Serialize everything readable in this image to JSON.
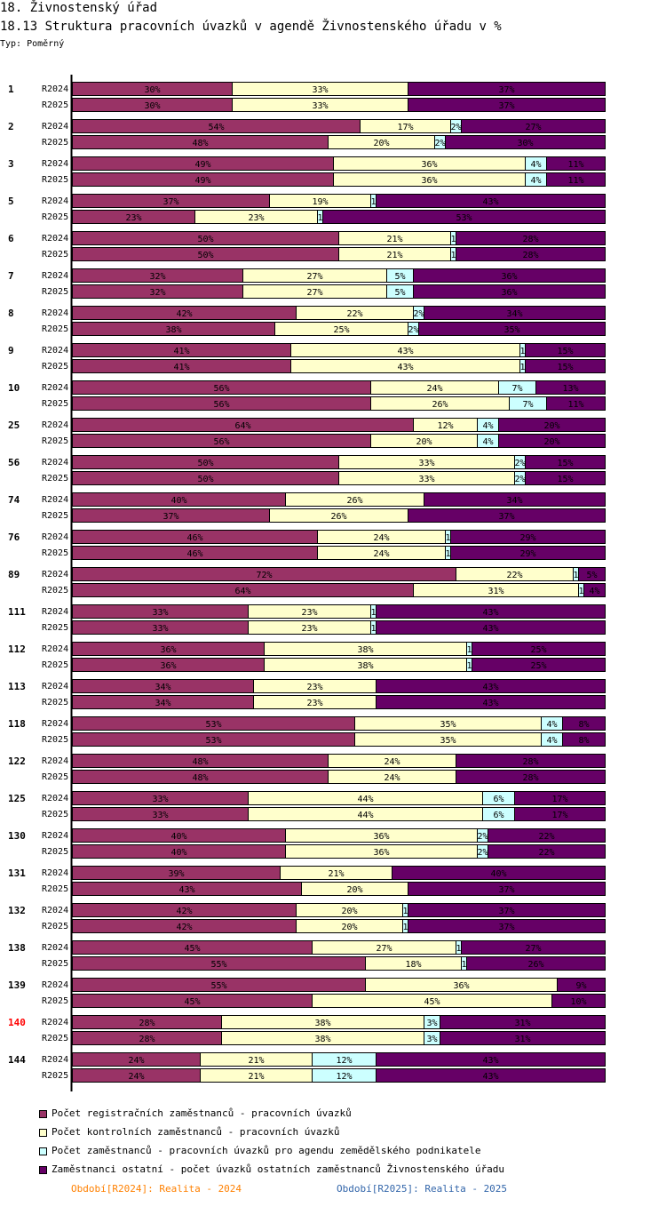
{
  "header": {
    "title": "18. Živnostenský úřad",
    "subtitle": "18.13 Struktura pracovních úvazků v agendě Živnostenského úřadu v %",
    "type_label": "Typ: Poměrný"
  },
  "colors": {
    "registration": "#993366",
    "control": "#ffffcc",
    "agriculture": "#ccffff",
    "other": "#660066",
    "highlight_group": "#ff0000",
    "period1": "#ff8000",
    "period2": "#3366aa"
  },
  "chart_data": {
    "type": "bar",
    "orientation": "horizontal",
    "stacked": true,
    "normalized": true,
    "unit": "%",
    "series": [
      {
        "name": "Počet registračních zaměstnanců - pracovních úvazků"
      },
      {
        "name": "Počet kontrolních zaměstnanců - pracovních úvazků"
      },
      {
        "name": "Počet zaměstnanců - pracovních úvazků pro agendu zemědělského podnikatele"
      },
      {
        "name": "Zaměstnanci ostatní - počet úvazků ostatních zaměstnanců Živnostenského úřadu"
      }
    ],
    "groups": [
      {
        "label": "1",
        "highlight": false,
        "rows": [
          {
            "period": "R2024",
            "values": [
              30,
              33,
              0,
              37
            ],
            "labels": [
              "30%",
              "33%",
              "",
              "37%"
            ]
          },
          {
            "period": "R2025",
            "values": [
              30,
              33,
              0,
              37
            ],
            "labels": [
              "30%",
              "33%",
              "",
              "37%"
            ]
          }
        ]
      },
      {
        "label": "2",
        "highlight": false,
        "rows": [
          {
            "period": "R2024",
            "values": [
              54,
              17,
              2,
              27
            ],
            "labels": [
              "54%",
              "17%",
              "2%",
              "27%"
            ]
          },
          {
            "period": "R2025",
            "values": [
              48,
              20,
              2,
              30
            ],
            "labels": [
              "48%",
              "20%",
              "2%",
              "30%"
            ]
          }
        ]
      },
      {
        "label": "3",
        "highlight": false,
        "rows": [
          {
            "period": "R2024",
            "values": [
              49,
              36,
              4,
              11
            ],
            "labels": [
              "49%",
              "36%",
              "4%",
              "11%"
            ]
          },
          {
            "period": "R2025",
            "values": [
              49,
              36,
              4,
              11
            ],
            "labels": [
              "49%",
              "36%",
              "4%",
              "11%"
            ]
          }
        ]
      },
      {
        "label": "5",
        "highlight": false,
        "rows": [
          {
            "period": "R2024",
            "values": [
              37,
              19,
              1,
              43
            ],
            "labels": [
              "37%",
              "19%",
              "1",
              "43%"
            ]
          },
          {
            "period": "R2025",
            "values": [
              23,
              23,
              1,
              53
            ],
            "labels": [
              "23%",
              "23%",
              "1",
              "53%"
            ]
          }
        ]
      },
      {
        "label": "6",
        "highlight": false,
        "rows": [
          {
            "period": "R2024",
            "values": [
              50,
              21,
              1,
              28
            ],
            "labels": [
              "50%",
              "21%",
              "1",
              "28%"
            ]
          },
          {
            "period": "R2025",
            "values": [
              50,
              21,
              1,
              28
            ],
            "labels": [
              "50%",
              "21%",
              "1",
              "28%"
            ]
          }
        ]
      },
      {
        "label": "7",
        "highlight": false,
        "rows": [
          {
            "period": "R2024",
            "values": [
              32,
              27,
              5,
              36
            ],
            "labels": [
              "32%",
              "27%",
              "5%",
              "36%"
            ]
          },
          {
            "period": "R2025",
            "values": [
              32,
              27,
              5,
              36
            ],
            "labels": [
              "32%",
              "27%",
              "5%",
              "36%"
            ]
          }
        ]
      },
      {
        "label": "8",
        "highlight": false,
        "rows": [
          {
            "period": "R2024",
            "values": [
              42,
              22,
              2,
              34
            ],
            "labels": [
              "42%",
              "22%",
              "2%",
              "34%"
            ]
          },
          {
            "period": "R2025",
            "values": [
              38,
              25,
              2,
              35
            ],
            "labels": [
              "38%",
              "25%",
              "2%",
              "35%"
            ]
          }
        ]
      },
      {
        "label": "9",
        "highlight": false,
        "rows": [
          {
            "period": "R2024",
            "values": [
              41,
              43,
              1,
              15
            ],
            "labels": [
              "41%",
              "43%",
              "1",
              "15%"
            ]
          },
          {
            "period": "R2025",
            "values": [
              41,
              43,
              1,
              15
            ],
            "labels": [
              "41%",
              "43%",
              "1",
              "15%"
            ]
          }
        ]
      },
      {
        "label": "10",
        "highlight": false,
        "rows": [
          {
            "period": "R2024",
            "values": [
              56,
              24,
              7,
              13
            ],
            "labels": [
              "56%",
              "24%",
              "7%",
              "13%"
            ]
          },
          {
            "period": "R2025",
            "values": [
              56,
              26,
              7,
              11
            ],
            "labels": [
              "56%",
              "26%",
              "7%",
              "11%"
            ]
          }
        ]
      },
      {
        "label": "25",
        "highlight": false,
        "rows": [
          {
            "period": "R2024",
            "values": [
              64,
              12,
              4,
              20
            ],
            "labels": [
              "64%",
              "12%",
              "4%",
              "20%"
            ]
          },
          {
            "period": "R2025",
            "values": [
              56,
              20,
              4,
              20
            ],
            "labels": [
              "56%",
              "20%",
              "4%",
              "20%"
            ]
          }
        ]
      },
      {
        "label": "56",
        "highlight": false,
        "rows": [
          {
            "period": "R2024",
            "values": [
              50,
              33,
              2,
              15
            ],
            "labels": [
              "50%",
              "33%",
              "2%",
              "15%"
            ]
          },
          {
            "period": "R2025",
            "values": [
              50,
              33,
              2,
              15
            ],
            "labels": [
              "50%",
              "33%",
              "2%",
              "15%"
            ]
          }
        ]
      },
      {
        "label": "74",
        "highlight": false,
        "rows": [
          {
            "period": "R2024",
            "values": [
              40,
              26,
              0,
              34
            ],
            "labels": [
              "40%",
              "26%",
              "",
              "34%"
            ]
          },
          {
            "period": "R2025",
            "values": [
              37,
              26,
              0,
              37
            ],
            "labels": [
              "37%",
              "26%",
              "",
              "37%"
            ]
          }
        ]
      },
      {
        "label": "76",
        "highlight": false,
        "rows": [
          {
            "period": "R2024",
            "values": [
              46,
              24,
              1,
              29
            ],
            "labels": [
              "46%",
              "24%",
              "1",
              "29%"
            ]
          },
          {
            "period": "R2025",
            "values": [
              46,
              24,
              1,
              29
            ],
            "labels": [
              "46%",
              "24%",
              "1",
              "29%"
            ]
          }
        ]
      },
      {
        "label": "89",
        "highlight": false,
        "rows": [
          {
            "period": "R2024",
            "values": [
              72,
              22,
              1,
              5
            ],
            "labels": [
              "72%",
              "22%",
              "1",
              "5%"
            ]
          },
          {
            "period": "R2025",
            "values": [
              64,
              31,
              1,
              4
            ],
            "labels": [
              "64%",
              "31%",
              "1",
              "4%"
            ]
          }
        ]
      },
      {
        "label": "111",
        "highlight": false,
        "rows": [
          {
            "period": "R2024",
            "values": [
              33,
              23,
              1,
              43
            ],
            "labels": [
              "33%",
              "23%",
              "1",
              "43%"
            ]
          },
          {
            "period": "R2025",
            "values": [
              33,
              23,
              1,
              43
            ],
            "labels": [
              "33%",
              "23%",
              "1",
              "43%"
            ]
          }
        ]
      },
      {
        "label": "112",
        "highlight": false,
        "rows": [
          {
            "period": "R2024",
            "values": [
              36,
              38,
              1,
              25
            ],
            "labels": [
              "36%",
              "38%",
              "1",
              "25%"
            ]
          },
          {
            "period": "R2025",
            "values": [
              36,
              38,
              1,
              25
            ],
            "labels": [
              "36%",
              "38%",
              "1",
              "25%"
            ]
          }
        ]
      },
      {
        "label": "113",
        "highlight": false,
        "rows": [
          {
            "period": "R2024",
            "values": [
              34,
              23,
              0,
              43
            ],
            "labels": [
              "34%",
              "23%",
              "",
              "43%"
            ]
          },
          {
            "period": "R2025",
            "values": [
              34,
              23,
              0,
              43
            ],
            "labels": [
              "34%",
              "23%",
              "",
              "43%"
            ]
          }
        ]
      },
      {
        "label": "118",
        "highlight": false,
        "rows": [
          {
            "period": "R2024",
            "values": [
              53,
              35,
              4,
              8
            ],
            "labels": [
              "53%",
              "35%",
              "4%",
              "8%"
            ]
          },
          {
            "period": "R2025",
            "values": [
              53,
              35,
              4,
              8
            ],
            "labels": [
              "53%",
              "35%",
              "4%",
              "8%"
            ]
          }
        ]
      },
      {
        "label": "122",
        "highlight": false,
        "rows": [
          {
            "period": "R2024",
            "values": [
              48,
              24,
              0,
              28
            ],
            "labels": [
              "48%",
              "24%",
              "",
              "28%"
            ]
          },
          {
            "period": "R2025",
            "values": [
              48,
              24,
              0,
              28
            ],
            "labels": [
              "48%",
              "24%",
              "",
              "28%"
            ]
          }
        ]
      },
      {
        "label": "125",
        "highlight": false,
        "rows": [
          {
            "period": "R2024",
            "values": [
              33,
              44,
              6,
              17
            ],
            "labels": [
              "33%",
              "44%",
              "6%",
              "17%"
            ]
          },
          {
            "period": "R2025",
            "values": [
              33,
              44,
              6,
              17
            ],
            "labels": [
              "33%",
              "44%",
              "6%",
              "17%"
            ]
          }
        ]
      },
      {
        "label": "130",
        "highlight": false,
        "rows": [
          {
            "period": "R2024",
            "values": [
              40,
              36,
              2,
              22
            ],
            "labels": [
              "40%",
              "36%",
              "2%",
              "22%"
            ]
          },
          {
            "period": "R2025",
            "values": [
              40,
              36,
              2,
              22
            ],
            "labels": [
              "40%",
              "36%",
              "2%",
              "22%"
            ]
          }
        ]
      },
      {
        "label": "131",
        "highlight": false,
        "rows": [
          {
            "period": "R2024",
            "values": [
              39,
              21,
              0,
              40
            ],
            "labels": [
              "39%",
              "21%",
              "",
              "40%"
            ]
          },
          {
            "period": "R2025",
            "values": [
              43,
              20,
              0,
              37
            ],
            "labels": [
              "43%",
              "20%",
              "",
              "37%"
            ]
          }
        ]
      },
      {
        "label": "132",
        "highlight": false,
        "rows": [
          {
            "period": "R2024",
            "values": [
              42,
              20,
              1,
              37
            ],
            "labels": [
              "42%",
              "20%",
              "1",
              "37%"
            ]
          },
          {
            "period": "R2025",
            "values": [
              42,
              20,
              1,
              37
            ],
            "labels": [
              "42%",
              "20%",
              "1",
              "37%"
            ]
          }
        ]
      },
      {
        "label": "138",
        "highlight": false,
        "rows": [
          {
            "period": "R2024",
            "values": [
              45,
              27,
              1,
              27
            ],
            "labels": [
              "45%",
              "27%",
              "1",
              "27%"
            ]
          },
          {
            "period": "R2025",
            "values": [
              55,
              18,
              1,
              26
            ],
            "labels": [
              "55%",
              "18%",
              "1",
              "26%"
            ]
          }
        ]
      },
      {
        "label": "139",
        "highlight": false,
        "rows": [
          {
            "period": "R2024",
            "values": [
              55,
              36,
              0,
              9
            ],
            "labels": [
              "55%",
              "36%",
              "",
              "9%"
            ]
          },
          {
            "period": "R2025",
            "values": [
              45,
              45,
              0,
              10
            ],
            "labels": [
              "45%",
              "45%",
              "",
              "10%"
            ]
          }
        ]
      },
      {
        "label": "140",
        "highlight": true,
        "rows": [
          {
            "period": "R2024",
            "values": [
              28,
              38,
              3,
              31
            ],
            "labels": [
              "28%",
              "38%",
              "3%",
              "31%"
            ]
          },
          {
            "period": "R2025",
            "values": [
              28,
              38,
              3,
              31
            ],
            "labels": [
              "28%",
              "38%",
              "3%",
              "31%"
            ]
          }
        ]
      },
      {
        "label": "144",
        "highlight": false,
        "rows": [
          {
            "period": "R2024",
            "values": [
              24,
              21,
              12,
              43
            ],
            "labels": [
              "24%",
              "21%",
              "12%",
              "43%"
            ]
          },
          {
            "period": "R2025",
            "values": [
              24,
              21,
              12,
              43
            ],
            "labels": [
              "24%",
              "21%",
              "12%",
              "43%"
            ]
          }
        ]
      }
    ]
  },
  "legend": {
    "items": [
      "Počet registračních zaměstnanců - pracovních úvazků",
      "Počet kontrolních zaměstnanců - pracovních úvazků",
      "Počet zaměstnanců - pracovních úvazků pro agendu zemědělského podnikatele",
      "Zaměstnanci ostatní - počet úvazků ostatních zaměstnanců Živnostenského úřadu"
    ],
    "period1": "Období[R2024]: Realita - 2024",
    "period2": "Období[R2025]: Realita - 2025"
  }
}
